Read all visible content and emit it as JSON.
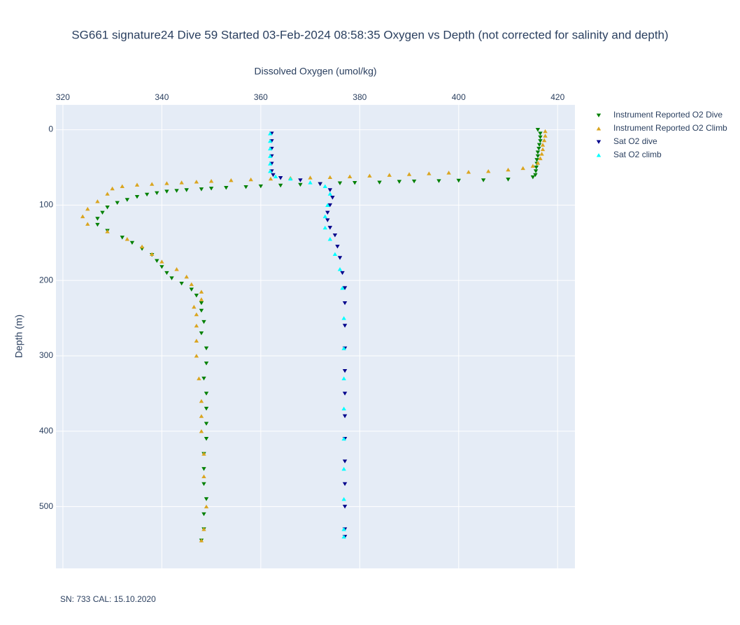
{
  "chart_data": {
    "type": "scatter",
    "title": "SG661 signature24 Dive 59 Started 03-Feb-2024 08:58:35  Oxygen vs Depth (not corrected for salinity and depth)",
    "x_label": "Dissolved Oxygen (umol/kg)",
    "y_label": "Depth (m)",
    "annotation": "SN: 733  CAL: 15.10.2020",
    "xlim": [
      318.6,
      423.5
    ],
    "xticks": [
      320,
      340,
      360,
      380,
      400,
      420
    ],
    "ylim": [
      582,
      -33
    ],
    "yticks": [
      0,
      100,
      200,
      300,
      400,
      500
    ],
    "grid": true,
    "legend": "right",
    "series": [
      {
        "name": "Instrument Reported O2 Dive",
        "color": "#008000",
        "symbol": "triangle-down",
        "x": [
          416,
          416.5,
          416.5,
          416.5,
          416.3,
          416.2,
          416,
          416,
          415.8,
          415.8,
          415.7,
          415.6,
          415.5,
          415,
          410,
          405,
          400,
          396,
          391,
          388,
          384,
          379,
          376,
          372,
          368,
          364,
          360,
          357,
          353,
          350,
          348,
          345,
          343,
          341,
          339,
          337,
          335,
          333,
          331,
          329,
          328,
          327,
          327,
          329,
          332,
          334,
          336,
          338,
          339,
          340,
          341,
          342,
          344,
          346,
          347,
          348,
          348,
          348.5,
          348,
          349,
          349,
          348.5,
          349,
          349,
          349,
          349,
          348.5,
          348.5,
          348.5,
          349,
          348.5,
          348.5,
          348
        ],
        "values": [
          0,
          5,
          10,
          15,
          20,
          25,
          30,
          35,
          40,
          45,
          50,
          55,
          60,
          63,
          66,
          67,
          67.5,
          68,
          68.5,
          69,
          70,
          70.5,
          71,
          72,
          73,
          74,
          75,
          76,
          77,
          78,
          79,
          80,
          81,
          82,
          84,
          86,
          89,
          93,
          97,
          103,
          110,
          118,
          126,
          134,
          143,
          150,
          158,
          166,
          174,
          182,
          190,
          197,
          204,
          212,
          220,
          230,
          240,
          255,
          270,
          290,
          310,
          330,
          350,
          370,
          390,
          410,
          430,
          450,
          470,
          490,
          510,
          530,
          545
        ]
      },
      {
        "name": "Instrument Reported O2 Climb",
        "color": "#daa520",
        "symbol": "triangle-up",
        "x": [
          417.5,
          417.5,
          417.3,
          417,
          417,
          416.8,
          416.5,
          416,
          415,
          413,
          410,
          406,
          402,
          398,
          394,
          390,
          386,
          382,
          378,
          374,
          370,
          366,
          362,
          358,
          354,
          350,
          347,
          344,
          341,
          338,
          335,
          332,
          330,
          329,
          327,
          325,
          324,
          325,
          329,
          333,
          336,
          338,
          340,
          343,
          345,
          346,
          348,
          348,
          346.5,
          347,
          347,
          347,
          347,
          347.5,
          348,
          348,
          348,
          348.5,
          348.5,
          349,
          348.5,
          348
        ],
        "values": [
          2,
          8,
          14,
          20,
          26,
          32,
          38,
          44,
          48,
          51,
          53,
          55,
          56,
          57,
          58,
          59,
          60,
          61,
          62,
          63,
          63.5,
          64,
          65,
          66,
          67,
          68,
          69,
          70,
          71,
          72,
          73,
          75,
          78,
          85,
          95,
          105,
          115,
          125,
          135,
          145,
          155,
          165,
          175,
          185,
          195,
          205,
          215,
          225,
          235,
          245,
          260,
          280,
          300,
          330,
          360,
          380,
          400,
          430,
          460,
          500,
          530,
          545
        ]
      },
      {
        "name": "Sat O2 dive",
        "color": "#00008b",
        "symbol": "triangle-down",
        "x": [
          362.2,
          362.2,
          362.2,
          362.2,
          362.2,
          362.2,
          362.5,
          364,
          368,
          372,
          374,
          374.5,
          374,
          373.5,
          373.5,
          374,
          375,
          375.5,
          376,
          376.5,
          377,
          377,
          377,
          377,
          377,
          377,
          377,
          377,
          377,
          377,
          377,
          377,
          377
        ],
        "values": [
          5,
          15,
          25,
          35,
          45,
          55,
          60,
          64,
          67,
          72,
          80,
          90,
          100,
          110,
          120,
          130,
          140,
          155,
          170,
          190,
          210,
          230,
          260,
          290,
          320,
          350,
          380,
          410,
          440,
          470,
          500,
          530,
          540
        ]
      },
      {
        "name": "Sat O2 climb",
        "color": "#00ffff",
        "symbol": "triangle-up",
        "x": [
          361.9,
          361.9,
          361.9,
          361.9,
          361.9,
          361.9,
          363,
          366,
          370,
          373,
          374,
          373.5,
          373,
          373,
          374,
          375,
          376,
          376.5,
          376.8,
          376.8,
          376.8,
          376.8,
          376.8,
          376.8,
          376.8,
          376.8,
          376.8
        ],
        "values": [
          5,
          15,
          25,
          35,
          45,
          55,
          62,
          65,
          70,
          75,
          85,
          100,
          115,
          130,
          145,
          165,
          185,
          210,
          250,
          290,
          330,
          370,
          410,
          450,
          490,
          530,
          540
        ]
      }
    ]
  }
}
